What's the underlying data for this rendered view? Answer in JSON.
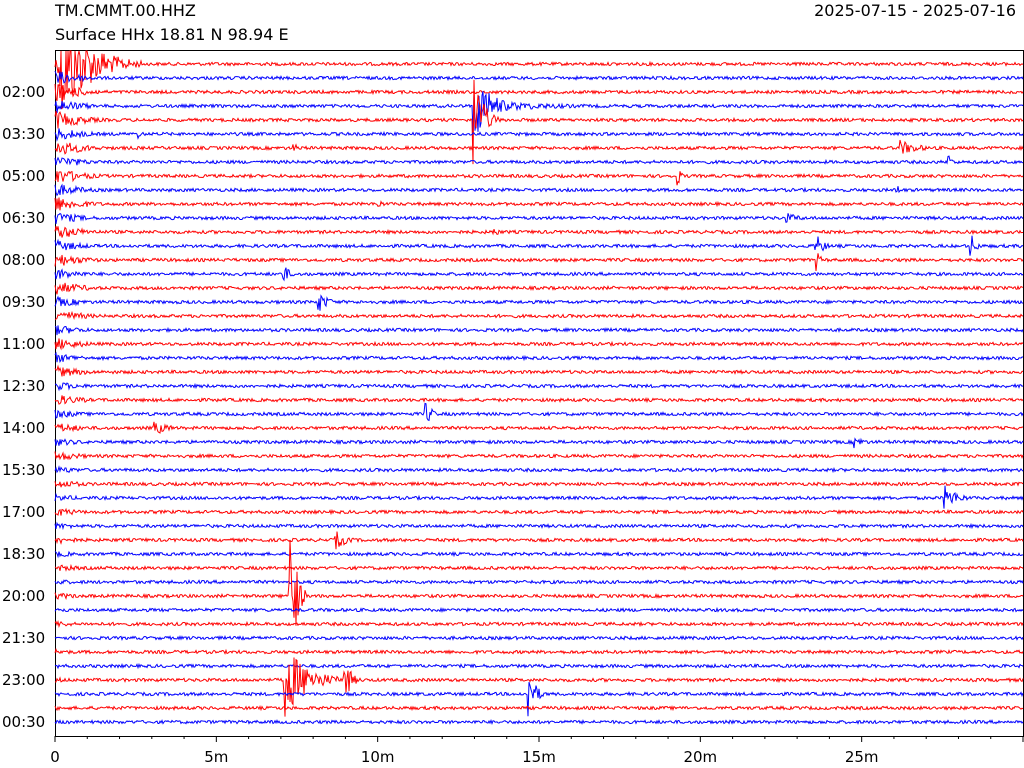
{
  "header": {
    "station": "TM.CMMT.00.HHZ",
    "date_range": "2025-07-15 - 2025-07-16",
    "subtitle": "Surface HHx  18.81 N 98.94 E"
  },
  "colors": {
    "red": "#ff0000",
    "blue": "#0000ff"
  },
  "chart_data": {
    "type": "line",
    "title": "TM.CMMT.00.HHZ",
    "subtitle": "Surface HHx  18.81 N 98.94 E",
    "xlabel": "",
    "ylabel": "",
    "x_unit": "minutes",
    "xlim": [
      0,
      30
    ],
    "x_ticks": [
      {
        "value": 0,
        "label": "0"
      },
      {
        "value": 5,
        "label": "5m"
      },
      {
        "value": 10,
        "label": "10m"
      },
      {
        "value": 15,
        "label": "15m"
      },
      {
        "value": 20,
        "label": "20m"
      },
      {
        "value": 25,
        "label": "25m"
      }
    ],
    "y_tick_labels": [
      "02:00",
      "03:30",
      "05:00",
      "06:30",
      "08:00",
      "09:30",
      "11:00",
      "12:30",
      "14:00",
      "15:30",
      "17:00",
      "18:30",
      "20:00",
      "21:30",
      "23:00",
      "00:30"
    ],
    "trace_count": 48,
    "trace_minutes": 30,
    "alternating_colors": [
      "red",
      "blue"
    ],
    "events": [
      {
        "row": 0,
        "minute": 0.2,
        "amplitude": 60,
        "duration": 2.5,
        "spans_rows": true
      },
      {
        "row": 3,
        "minute": 13.0,
        "amplitude": 35,
        "duration": 1.5
      },
      {
        "row": 3,
        "minute": 13.3,
        "amplitude": 6,
        "duration": 7
      },
      {
        "row": 4,
        "minute": 13.0,
        "amplitude": 50,
        "duration": 0.8
      },
      {
        "row": 5,
        "minute": 2.6,
        "amplitude": 4,
        "duration": 0.5
      },
      {
        "row": 6,
        "minute": 7.4,
        "amplitude": 4,
        "duration": 1
      },
      {
        "row": 6,
        "minute": 26.2,
        "amplitude": 8,
        "duration": 1.8
      },
      {
        "row": 7,
        "minute": 27.7,
        "amplitude": 8,
        "duration": 0.4
      },
      {
        "row": 8,
        "minute": 19.3,
        "amplitude": 9,
        "duration": 0.4
      },
      {
        "row": 9,
        "minute": 26.1,
        "amplitude": 6,
        "duration": 0.4
      },
      {
        "row": 10,
        "minute": 10.0,
        "amplitude": 5,
        "duration": 0.6
      },
      {
        "row": 11,
        "minute": 22.7,
        "amplitude": 5,
        "duration": 1.5
      },
      {
        "row": 12,
        "minute": 13.6,
        "amplitude": 5,
        "duration": 0.6
      },
      {
        "row": 13,
        "minute": 23.6,
        "amplitude": 12,
        "duration": 0.7
      },
      {
        "row": 13,
        "minute": 28.4,
        "amplitude": 12,
        "duration": 0.5
      },
      {
        "row": 14,
        "minute": 23.6,
        "amplitude": 10,
        "duration": 0.4
      },
      {
        "row": 15,
        "minute": 7.1,
        "amplitude": 9,
        "duration": 0.6
      },
      {
        "row": 17,
        "minute": 8.2,
        "amplitude": 10,
        "duration": 0.9
      },
      {
        "row": 25,
        "minute": 11.5,
        "amplitude": 12,
        "duration": 0.6
      },
      {
        "row": 26,
        "minute": 3.1,
        "amplitude": 7,
        "duration": 1.4
      },
      {
        "row": 27,
        "minute": 24.8,
        "amplitude": 6,
        "duration": 1.0
      },
      {
        "row": 31,
        "minute": 27.6,
        "amplitude": 12,
        "duration": 1.2
      },
      {
        "row": 34,
        "minute": 8.7,
        "amplitude": 10,
        "duration": 1.0
      },
      {
        "row": 38,
        "minute": 7.3,
        "amplitude": 90,
        "duration": 0.5
      },
      {
        "row": 44,
        "minute": 7.1,
        "amplitude": 40,
        "duration": 2.0
      },
      {
        "row": 44,
        "minute": 9.0,
        "amplitude": 20,
        "duration": 0.6
      },
      {
        "row": 45,
        "minute": 14.7,
        "amplitude": 25,
        "duration": 0.6
      }
    ]
  }
}
